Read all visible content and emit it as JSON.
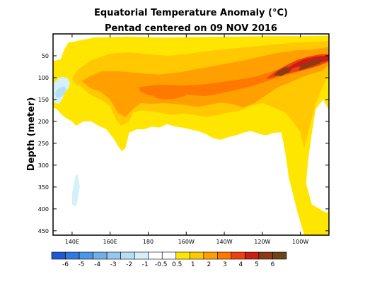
{
  "chart_data": {
    "type": "heatmap",
    "title": "Equatorial Temperature Anomaly (°C)",
    "subtitle": "Pentad centered on 09 NOV 2016",
    "xlabel": "",
    "ylabel": "Depth (meter)",
    "x_range_deg_east": [
      130,
      275
    ],
    "y_range_m": [
      0,
      460
    ],
    "y_inverted": true,
    "x_ticks": [
      {
        "lon": 140,
        "label": "140E"
      },
      {
        "lon": 160,
        "label": "160E"
      },
      {
        "lon": 180,
        "label": "180"
      },
      {
        "lon": 200,
        "label": "160W"
      },
      {
        "lon": 220,
        "label": "140W"
      },
      {
        "lon": 240,
        "label": "120W"
      },
      {
        "lon": 260,
        "label": "100W"
      }
    ],
    "y_ticks": [
      {
        "depth": 50,
        "label": "50"
      },
      {
        "depth": 100,
        "label": "100"
      },
      {
        "depth": 150,
        "label": "150"
      },
      {
        "depth": 200,
        "label": "200"
      },
      {
        "depth": 250,
        "label": "250"
      },
      {
        "depth": 300,
        "label": "300"
      },
      {
        "depth": 350,
        "label": "350"
      },
      {
        "depth": 400,
        "label": "400"
      },
      {
        "depth": 450,
        "label": "450"
      }
    ],
    "colorbar": {
      "colors": [
        "#1e5ad6",
        "#2f7ae0",
        "#4d95e6",
        "#6fb0ec",
        "#93c8f0",
        "#b6def4",
        "#d4f0f8",
        "#ffffff",
        "#ffffff",
        "#ffe600",
        "#ffc800",
        "#ffa000",
        "#ff7800",
        "#f04010",
        "#c81e14",
        "#8c3a14",
        "#6b4418"
      ],
      "labels": [
        "-6",
        "-5",
        "-4",
        "-3",
        "-2",
        "-1",
        "-0.5",
        "0.5",
        "1",
        "2",
        "3",
        "4",
        "5",
        "6"
      ]
    },
    "anomaly_regions": [
      {
        "level": 0.5,
        "points": [
          [
            134,
            58
          ],
          [
            136,
            35
          ],
          [
            138,
            20
          ],
          [
            152,
            8
          ],
          [
            170,
            6
          ],
          [
            186,
            8
          ],
          [
            205,
            7
          ],
          [
            225,
            6
          ],
          [
            245,
            5
          ],
          [
            262,
            5
          ],
          [
            275,
            4
          ],
          [
            275,
            175
          ],
          [
            272,
            150
          ],
          [
            268,
            172
          ],
          [
            266,
            228
          ],
          [
            264,
            290
          ],
          [
            263,
            342
          ],
          [
            266,
            390
          ],
          [
            274,
            410
          ],
          [
            275,
            400
          ],
          [
            275,
            460
          ],
          [
            262,
            460
          ],
          [
            258,
            400
          ],
          [
            254,
            330
          ],
          [
            252,
            270
          ],
          [
            250,
            225
          ],
          [
            246,
            226
          ],
          [
            242,
            232
          ],
          [
            238,
            228
          ],
          [
            234,
            222
          ],
          [
            230,
            226
          ],
          [
            226,
            232
          ],
          [
            222,
            236
          ],
          [
            218,
            242
          ],
          [
            214,
            238
          ],
          [
            210,
            228
          ],
          [
            206,
            222
          ],
          [
            202,
            218
          ],
          [
            198,
            214
          ],
          [
            194,
            212
          ],
          [
            190,
            206
          ],
          [
            186,
            214
          ],
          [
            182,
            212
          ],
          [
            178,
            218
          ],
          [
            174,
            218
          ],
          [
            170,
            226
          ],
          [
            168,
            262
          ],
          [
            166,
            268
          ],
          [
            164,
            255
          ],
          [
            162,
            240
          ],
          [
            158,
            218
          ],
          [
            154,
            210
          ],
          [
            150,
            200
          ],
          [
            146,
            200
          ],
          [
            142,
            210
          ],
          [
            140,
            200
          ],
          [
            136,
            190
          ],
          [
            134,
            182
          ],
          [
            132,
            172
          ],
          [
            130,
            168
          ],
          [
            130,
            62
          ]
        ]
      },
      {
        "level": 1,
        "points": [
          [
            140,
            102
          ],
          [
            143,
            82
          ],
          [
            150,
            60
          ],
          [
            160,
            45
          ],
          [
            170,
            42
          ],
          [
            180,
            46
          ],
          [
            190,
            50
          ],
          [
            200,
            46
          ],
          [
            210,
            40
          ],
          [
            220,
            35
          ],
          [
            232,
            30
          ],
          [
            244,
            25
          ],
          [
            256,
            20
          ],
          [
            268,
            18
          ],
          [
            275,
            16
          ],
          [
            275,
            90
          ],
          [
            272,
            118
          ],
          [
            268,
            160
          ],
          [
            265,
            210
          ],
          [
            262,
            262
          ],
          [
            260,
            225
          ],
          [
            256,
            200
          ],
          [
            252,
            180
          ],
          [
            246,
            168
          ],
          [
            240,
            158
          ],
          [
            234,
            164
          ],
          [
            228,
            176
          ],
          [
            222,
            180
          ],
          [
            216,
            186
          ],
          [
            210,
            190
          ],
          [
            204,
            185
          ],
          [
            198,
            182
          ],
          [
            192,
            185
          ],
          [
            186,
            180
          ],
          [
            180,
            176
          ],
          [
            176,
            175
          ],
          [
            172,
            180
          ],
          [
            170,
            200
          ],
          [
            166,
            210
          ],
          [
            163,
            195
          ],
          [
            160,
            165
          ],
          [
            155,
            150
          ],
          [
            150,
            140
          ],
          [
            146,
            125
          ],
          [
            142,
            115
          ]
        ]
      },
      {
        "level": 2,
        "points": [
          [
            145,
            108
          ],
          [
            150,
            95
          ],
          [
            156,
            85
          ],
          [
            166,
            86
          ],
          [
            176,
            90
          ],
          [
            186,
            93
          ],
          [
            196,
            88
          ],
          [
            206,
            80
          ],
          [
            216,
            72
          ],
          [
            226,
            64
          ],
          [
            236,
            55
          ],
          [
            246,
            45
          ],
          [
            256,
            38
          ],
          [
            268,
            35
          ],
          [
            275,
            30
          ],
          [
            275,
            72
          ],
          [
            271,
            85
          ],
          [
            265,
            92
          ],
          [
            260,
            100
          ],
          [
            255,
            110
          ],
          [
            248,
            122
          ],
          [
            242,
            140
          ],
          [
            236,
            158
          ],
          [
            230,
            168
          ],
          [
            224,
            160
          ],
          [
            218,
            157
          ],
          [
            212,
            162
          ],
          [
            206,
            167
          ],
          [
            200,
            163
          ],
          [
            194,
            160
          ],
          [
            188,
            158
          ],
          [
            182,
            160
          ],
          [
            176,
            158
          ],
          [
            172,
            172
          ],
          [
            168,
            190
          ],
          [
            164,
            180
          ],
          [
            160,
            150
          ],
          [
            155,
            132
          ],
          [
            150,
            125
          ]
        ]
      },
      {
        "level": 3,
        "points": [
          [
            175,
            122
          ],
          [
            185,
            116
          ],
          [
            198,
            118
          ],
          [
            210,
            115
          ],
          [
            222,
            108
          ],
          [
            234,
            100
          ],
          [
            244,
            88
          ],
          [
            252,
            75
          ],
          [
            260,
            62
          ],
          [
            268,
            55
          ],
          [
            275,
            52
          ],
          [
            275,
            65
          ],
          [
            270,
            72
          ],
          [
            264,
            80
          ],
          [
            258,
            88
          ],
          [
            252,
            95
          ],
          [
            246,
            103
          ],
          [
            240,
            112
          ],
          [
            234,
            120
          ],
          [
            228,
            126
          ],
          [
            222,
            132
          ],
          [
            216,
            138
          ],
          [
            210,
            142
          ],
          [
            204,
            140
          ],
          [
            198,
            138
          ],
          [
            192,
            140
          ],
          [
            186,
            142
          ],
          [
            180,
            140
          ],
          [
            176,
            132
          ]
        ]
      },
      {
        "level": 3,
        "points": [
          [
            182,
            138
          ],
          [
            186,
            130
          ],
          [
            191,
            126
          ],
          [
            196,
            124
          ],
          [
            200,
            128
          ],
          [
            200,
            141
          ],
          [
            194,
            148
          ],
          [
            188,
            150
          ],
          [
            184,
            146
          ]
        ]
      },
      {
        "level": 4,
        "points": [
          [
            242,
            102
          ],
          [
            246,
            88
          ],
          [
            252,
            73
          ],
          [
            258,
            60
          ],
          [
            264,
            52
          ],
          [
            270,
            47
          ],
          [
            275,
            46
          ],
          [
            275,
            62
          ],
          [
            270,
            72
          ],
          [
            266,
            78
          ],
          [
            260,
            84
          ],
          [
            254,
            90
          ],
          [
            248,
            96
          ],
          [
            244,
            102
          ]
        ]
      },
      {
        "level": 5,
        "points": [
          [
            252,
            83
          ],
          [
            256,
            70
          ],
          [
            262,
            58
          ],
          [
            268,
            52
          ],
          [
            273,
            50
          ],
          [
            275,
            52
          ],
          [
            275,
            60
          ],
          [
            270,
            66
          ],
          [
            266,
            70
          ],
          [
            260,
            74
          ],
          [
            256,
            78
          ],
          [
            254,
            84
          ]
        ]
      },
      {
        "level": 6,
        "points": [
          [
            246,
            95
          ],
          [
            248,
            85
          ],
          [
            252,
            76
          ],
          [
            256,
            78
          ],
          [
            254,
            88
          ],
          [
            250,
            96
          ]
        ]
      },
      {
        "level": 6,
        "points": [
          [
            259,
            84
          ],
          [
            260,
            74
          ],
          [
            264,
            66
          ],
          [
            268,
            60
          ],
          [
            272,
            58
          ],
          [
            270,
            68
          ],
          [
            266,
            74
          ],
          [
            262,
            80
          ]
        ]
      },
      {
        "level": -0.5,
        "points": [
          [
            130,
            115
          ],
          [
            133,
            100
          ],
          [
            135,
            98
          ],
          [
            138,
            102
          ],
          [
            139,
            112
          ],
          [
            138,
            125
          ],
          [
            136,
            135
          ],
          [
            135,
            148
          ],
          [
            133,
            160
          ],
          [
            131,
            158
          ],
          [
            130,
            150
          ]
        ]
      },
      {
        "level": -1,
        "points": [
          [
            131,
            138
          ],
          [
            132,
            128
          ],
          [
            134,
            122
          ],
          [
            136,
            120
          ],
          [
            137,
            128
          ],
          [
            136,
            137
          ],
          [
            134,
            145
          ],
          [
            132,
            146
          ]
        ]
      },
      {
        "level": -0.5,
        "points": [
          [
            140,
            365
          ],
          [
            141,
            342
          ],
          [
            142,
            322
          ],
          [
            143,
            322
          ],
          [
            144,
            348
          ],
          [
            143,
            378
          ],
          [
            142,
            395
          ],
          [
            140,
            390
          ]
        ]
      }
    ]
  }
}
